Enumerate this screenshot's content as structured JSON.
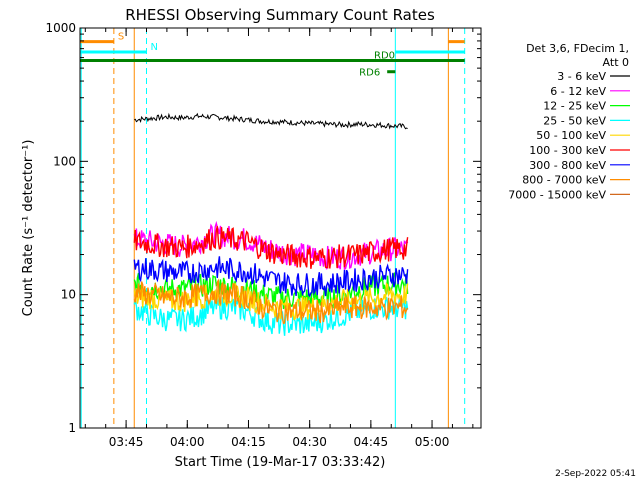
{
  "chart_data": {
    "type": "line",
    "title": "RHESSI Observing Summary Count Rates",
    "xlabel": "Start Time (19-Mar-17 03:33:42)",
    "ylabel": "Count Rate (s⁻¹ detector⁻¹)",
    "yscale": "log",
    "ylim": [
      1,
      1000
    ],
    "xlim": [
      "03:33:42",
      "05:12:00"
    ],
    "x_ticks": [
      "03:45",
      "04:00",
      "04:15",
      "04:30",
      "04:45",
      "05:00"
    ],
    "y_ticks": [
      "1",
      "10",
      "100",
      "1000"
    ],
    "grid": false,
    "legend_position": "right",
    "legend_header": [
      "Det 3,6, FDecim 1,",
      "Att 0"
    ],
    "series": [
      {
        "name": "3 - 6 keV",
        "color": "#000000",
        "start": "03:47",
        "end": "04:54",
        "values": [
          205,
          210,
          215,
          212,
          218,
          215,
          210,
          205,
          200,
          198,
          195,
          192,
          190,
          188,
          190,
          188,
          185,
          182
        ]
      },
      {
        "name": "6 - 12 keV",
        "color": "#ff00ff",
        "start": "03:47",
        "end": "04:54",
        "values": [
          26,
          25,
          24,
          23,
          25,
          28,
          27,
          26,
          23,
          21,
          20,
          20,
          19,
          19,
          20,
          21,
          22,
          22
        ]
      },
      {
        "name": "12 - 25 keV",
        "color": "#00ff00",
        "start": "03:47",
        "end": "04:54",
        "values": [
          12,
          11.5,
          11,
          11,
          11.5,
          12,
          11.5,
          11,
          10,
          9.5,
          9.5,
          9.5,
          9.5,
          10,
          11,
          11.5,
          12,
          12
        ]
      },
      {
        "name": "25 - 50 keV",
        "color": "#00ffff",
        "start": "03:47",
        "end": "04:54",
        "values": [
          8,
          7,
          6.5,
          6.5,
          7,
          8,
          8,
          7.5,
          6.5,
          6,
          6,
          6,
          6.5,
          7,
          7.5,
          8,
          8,
          8
        ]
      },
      {
        "name": "50 - 100 keV",
        "color": "#ffd700",
        "start": "03:47",
        "end": "04:54",
        "values": [
          9.5,
          9.5,
          9,
          9,
          9.5,
          10,
          10,
          9.5,
          8.5,
          8,
          8,
          8,
          8.5,
          9,
          9,
          9.5,
          10,
          10
        ]
      },
      {
        "name": "100 - 300 keV",
        "color": "#ff0000",
        "start": "03:47",
        "end": "04:54",
        "values": [
          25,
          24,
          23,
          22.5,
          24,
          27,
          26,
          25,
          22,
          20,
          19.5,
          19,
          19,
          19.5,
          20,
          21,
          22,
          22
        ]
      },
      {
        "name": "300 - 800 keV",
        "color": "#0000ff",
        "start": "03:47",
        "end": "04:54",
        "values": [
          16,
          15.5,
          15,
          14.5,
          15,
          16,
          15.5,
          15,
          13.5,
          12.5,
          12,
          12,
          12,
          12.5,
          13,
          13.5,
          14,
          14
        ]
      },
      {
        "name": "800 - 7000 keV",
        "color": "#ff8c00",
        "start": "03:47",
        "end": "04:54",
        "values": [
          10.5,
          10,
          9.5,
          9.5,
          10,
          10.5,
          10,
          9.5,
          8,
          7.5,
          7.5,
          7.5,
          7.5,
          8,
          8,
          8,
          8,
          8
        ]
      },
      {
        "name": "7000 - 15000 keV",
        "color": "#d2691e",
        "start": "03:47",
        "end": "04:54",
        "values": []
      }
    ],
    "annotations": [
      {
        "label": "S",
        "color": "#ff8c00",
        "y": 790,
        "segments": [
          [
            "03:33:42",
            "03:42"
          ],
          [
            "05:04",
            "05:08"
          ]
        ]
      },
      {
        "label": "N",
        "color": "#00ffff",
        "y": 660,
        "segments": [
          [
            "03:33:42",
            "03:50"
          ],
          [
            "04:51",
            "05:08"
          ]
        ]
      },
      {
        "label": "RD0",
        "color": "#008000",
        "y": 570,
        "segments": [
          [
            "03:33:42",
            "05:08"
          ]
        ]
      },
      {
        "label": "RD6",
        "color": "#008000",
        "y": 470,
        "segments": [
          [
            "04:49",
            "04:51"
          ]
        ]
      }
    ],
    "vertical_lines": [
      {
        "time": "03:34",
        "color": "#00ffff",
        "style": "solid"
      },
      {
        "time": "03:42",
        "color": "#ff8c00",
        "style": "dashed"
      },
      {
        "time": "03:47",
        "color": "#ff8c00",
        "style": "solid"
      },
      {
        "time": "03:50",
        "color": "#00ffff",
        "style": "dashed"
      },
      {
        "time": "04:51",
        "color": "#00ffff",
        "style": "solid"
      },
      {
        "time": "05:04",
        "color": "#ff8c00",
        "style": "solid"
      },
      {
        "time": "05:08",
        "color": "#00ffff",
        "style": "dashed"
      }
    ],
    "footer_date": "2-Sep-2022 05:41",
    "colors": {
      "background": "#ffffff",
      "axes": "#000000"
    }
  }
}
